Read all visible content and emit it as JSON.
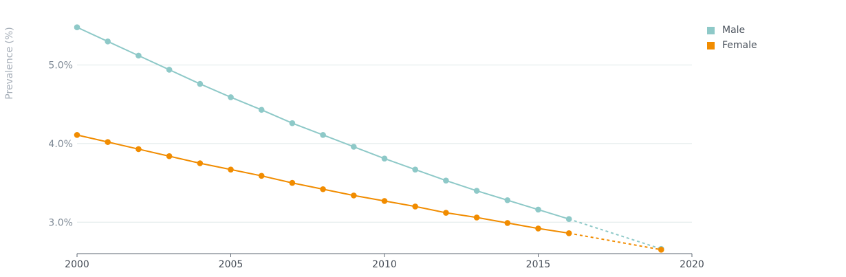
{
  "chart_data": {
    "type": "line",
    "title": "",
    "xlabel": "",
    "ylabel": "Prevalence (%)",
    "x": [
      2000,
      2001,
      2002,
      2003,
      2004,
      2005,
      2006,
      2007,
      2008,
      2009,
      2010,
      2011,
      2012,
      2013,
      2014,
      2015,
      2016,
      2019
    ],
    "xlim": [
      2000,
      2020
    ],
    "ylim": [
      2.6,
      5.6
    ],
    "x_ticks": [
      "2000",
      "2005",
      "2010",
      "2015",
      "2020"
    ],
    "y_ticks": [
      "3.0%",
      "4.0%",
      "5.0%"
    ],
    "grid": true,
    "legend_position": "top-right",
    "series": [
      {
        "name": "Male",
        "color": "#8ec9c8",
        "values": [
          5.48,
          5.3,
          5.12,
          4.94,
          4.76,
          4.59,
          4.43,
          4.26,
          4.11,
          3.96,
          3.81,
          3.67,
          3.53,
          3.4,
          3.28,
          3.16,
          3.04,
          2.66
        ],
        "projected_from": 2016
      },
      {
        "name": "Female",
        "color": "#f18c00",
        "values": [
          4.11,
          4.02,
          3.93,
          3.84,
          3.75,
          3.67,
          3.59,
          3.5,
          3.42,
          3.34,
          3.27,
          3.2,
          3.12,
          3.06,
          2.99,
          2.92,
          2.86,
          2.65
        ],
        "projected_from": 2016
      }
    ]
  },
  "legend": {
    "items": [
      {
        "label": "Male",
        "color": "#8ec9c8"
      },
      {
        "label": "Female",
        "color": "#f18c00"
      }
    ]
  },
  "colors": {
    "grid": "#dfe8e8",
    "axis": "#5b6470"
  }
}
